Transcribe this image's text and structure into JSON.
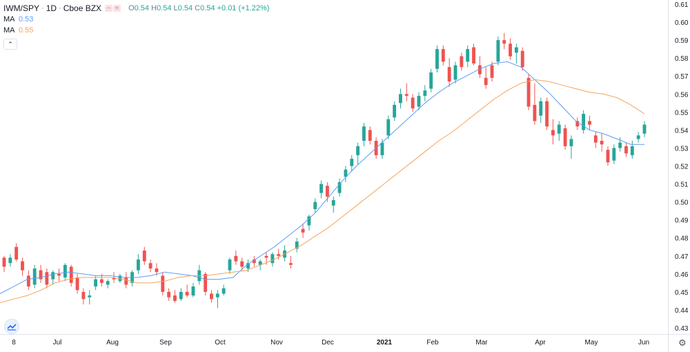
{
  "legend": {
    "symbol": "IWM/SPY",
    "interval": "1D",
    "exchange": "Cboe BZX",
    "badges": [
      "−",
      "≈"
    ],
    "ohlc": {
      "o_key": "O",
      "o": "0.54",
      "h_key": "H",
      "h": "0.54",
      "l_key": "L",
      "l": "0.54",
      "c_key": "C",
      "c": "0.54",
      "change": "+0.01 (+1.22%)"
    },
    "ma_rows": [
      {
        "label": "MA",
        "value": "0.53",
        "color": "#5b9cf6"
      },
      {
        "label": "MA",
        "value": "0.55",
        "color": "#f7a35c"
      }
    ],
    "collapse_icon": "chevron-up-icon"
  },
  "footer": {
    "logo_icon": "tradingview-logo-icon",
    "settings_icon": "gear-icon"
  },
  "colors": {
    "up": "#26a69a",
    "down": "#ef5350",
    "ma_short": "#5b9cf6",
    "ma_long": "#f7a35c",
    "axis_text": "#131722",
    "border": "#e0e3eb"
  },
  "chart_data": {
    "type": "candlestick",
    "title": "IWM/SPY",
    "xlabel": "",
    "ylabel": "",
    "ylim": [
      0.425,
      0.615
    ],
    "y_ticks": [
      "0.43",
      "0.44",
      "0.45",
      "0.46",
      "0.47",
      "0.48",
      "0.49",
      "0.50",
      "0.51",
      "0.52",
      "0.53",
      "0.54",
      "0.55",
      "0.56",
      "0.57",
      "0.58",
      "0.59",
      "0.60",
      "0.61"
    ],
    "x_ticks": [
      "8",
      "Jul",
      "Aug",
      "Sep",
      "Oct",
      "Nov",
      "Dec",
      "2021",
      "Feb",
      "Mar",
      "Apr",
      "May",
      "Jun"
    ],
    "series": [
      {
        "name": "MA",
        "value": "0.53",
        "values": [
          0.449,
          0.453,
          0.457,
          0.458,
          0.46,
          0.461,
          0.46,
          0.459,
          0.459,
          0.458,
          0.458,
          0.459,
          0.461,
          0.46,
          0.459,
          0.457,
          0.457,
          0.458,
          0.465,
          0.47,
          0.475,
          0.481,
          0.487,
          0.494,
          0.503,
          0.512,
          0.52,
          0.527,
          0.534,
          0.541,
          0.548,
          0.555,
          0.561,
          0.566,
          0.57,
          0.574,
          0.577,
          0.578,
          0.575,
          0.568,
          0.561,
          0.553,
          0.545,
          0.54,
          0.538,
          0.535,
          0.532,
          0.532
        ]
      },
      {
        "name": "MA",
        "value": "0.55",
        "values": [
          0.444,
          0.446,
          0.448,
          0.451,
          0.455,
          0.457,
          0.458,
          0.458,
          0.458,
          0.457,
          0.455,
          0.455,
          0.456,
          0.458,
          0.459,
          0.459,
          0.46,
          0.461,
          0.462,
          0.465,
          0.468,
          0.472,
          0.476,
          0.481,
          0.486,
          0.492,
          0.498,
          0.504,
          0.51,
          0.516,
          0.522,
          0.528,
          0.534,
          0.539,
          0.545,
          0.551,
          0.557,
          0.562,
          0.566,
          0.568,
          0.567,
          0.565,
          0.563,
          0.561,
          0.56,
          0.558,
          0.554,
          0.549
        ]
      }
    ],
    "candles": [
      [
        0.469,
        0.47,
        0.461,
        0.464
      ],
      [
        0.466,
        0.471,
        0.464,
        0.469
      ],
      [
        0.475,
        0.477,
        0.467,
        0.468
      ],
      [
        0.467,
        0.469,
        0.459,
        0.462
      ],
      [
        0.459,
        0.462,
        0.451,
        0.453
      ],
      [
        0.454,
        0.465,
        0.452,
        0.463
      ],
      [
        0.462,
        0.465,
        0.455,
        0.457
      ],
      [
        0.461,
        0.463,
        0.452,
        0.454
      ],
      [
        0.457,
        0.462,
        0.454,
        0.461
      ],
      [
        0.46,
        0.463,
        0.456,
        0.459
      ],
      [
        0.458,
        0.466,
        0.456,
        0.465
      ],
      [
        0.464,
        0.465,
        0.453,
        0.455
      ],
      [
        0.458,
        0.46,
        0.449,
        0.451
      ],
      [
        0.45,
        0.452,
        0.443,
        0.446
      ],
      [
        0.447,
        0.451,
        0.443,
        0.448
      ],
      [
        0.453,
        0.459,
        0.451,
        0.457
      ],
      [
        0.457,
        0.46,
        0.453,
        0.455
      ],
      [
        0.454,
        0.457,
        0.452,
        0.456
      ],
      [
        0.458,
        0.461,
        0.455,
        0.457
      ],
      [
        0.456,
        0.46,
        0.455,
        0.459
      ],
      [
        0.458,
        0.461,
        0.452,
        0.454
      ],
      [
        0.455,
        0.462,
        0.453,
        0.461
      ],
      [
        0.462,
        0.471,
        0.46,
        0.468
      ],
      [
        0.473,
        0.475,
        0.465,
        0.467
      ],
      [
        0.466,
        0.468,
        0.461,
        0.463
      ],
      [
        0.463,
        0.466,
        0.459,
        0.461
      ],
      [
        0.459,
        0.461,
        0.448,
        0.45
      ],
      [
        0.45,
        0.452,
        0.445,
        0.447
      ],
      [
        0.448,
        0.451,
        0.444,
        0.445
      ],
      [
        0.446,
        0.452,
        0.445,
        0.45
      ],
      [
        0.45,
        0.454,
        0.447,
        0.448
      ],
      [
        0.448,
        0.455,
        0.447,
        0.453
      ],
      [
        0.456,
        0.465,
        0.454,
        0.462
      ],
      [
        0.46,
        0.461,
        0.448,
        0.45
      ],
      [
        0.449,
        0.451,
        0.444,
        0.446
      ],
      [
        0.447,
        0.451,
        0.441,
        0.449
      ],
      [
        0.449,
        0.454,
        0.448,
        0.452
      ],
      [
        0.462,
        0.469,
        0.46,
        0.468
      ],
      [
        0.47,
        0.473,
        0.465,
        0.467
      ],
      [
        0.467,
        0.469,
        0.462,
        0.464
      ],
      [
        0.463,
        0.468,
        0.461,
        0.466
      ],
      [
        0.468,
        0.47,
        0.464,
        0.466
      ],
      [
        0.465,
        0.468,
        0.462,
        0.467
      ],
      [
        0.47,
        0.472,
        0.465,
        0.469
      ],
      [
        0.466,
        0.472,
        0.464,
        0.471
      ],
      [
        0.471,
        0.474,
        0.468,
        0.47
      ],
      [
        0.469,
        0.476,
        0.467,
        0.473
      ],
      [
        0.466,
        0.47,
        0.463,
        0.465
      ],
      [
        0.474,
        0.48,
        0.472,
        0.478
      ],
      [
        0.485,
        0.488,
        0.48,
        0.483
      ],
      [
        0.487,
        0.493,
        0.484,
        0.492
      ],
      [
        0.496,
        0.502,
        0.494,
        0.5
      ],
      [
        0.505,
        0.512,
        0.502,
        0.51
      ],
      [
        0.509,
        0.511,
        0.5,
        0.503
      ],
      [
        0.498,
        0.503,
        0.494,
        0.501
      ],
      [
        0.505,
        0.513,
        0.503,
        0.511
      ],
      [
        0.514,
        0.52,
        0.511,
        0.518
      ],
      [
        0.52,
        0.526,
        0.517,
        0.524
      ],
      [
        0.526,
        0.533,
        0.521,
        0.531
      ],
      [
        0.534,
        0.544,
        0.531,
        0.542
      ],
      [
        0.54,
        0.542,
        0.532,
        0.534
      ],
      [
        0.534,
        0.536,
        0.524,
        0.526
      ],
      [
        0.526,
        0.535,
        0.524,
        0.533
      ],
      [
        0.537,
        0.548,
        0.535,
        0.546
      ],
      [
        0.547,
        0.556,
        0.545,
        0.554
      ],
      [
        0.555,
        0.563,
        0.552,
        0.56
      ],
      [
        0.56,
        0.566,
        0.556,
        0.559
      ],
      [
        0.558,
        0.56,
        0.55,
        0.552
      ],
      [
        0.553,
        0.561,
        0.551,
        0.559
      ],
      [
        0.559,
        0.565,
        0.556,
        0.562
      ],
      [
        0.563,
        0.574,
        0.561,
        0.572
      ],
      [
        0.574,
        0.587,
        0.572,
        0.585
      ],
      [
        0.585,
        0.587,
        0.576,
        0.578
      ],
      [
        0.575,
        0.58,
        0.564,
        0.567
      ],
      [
        0.568,
        0.578,
        0.566,
        0.576
      ],
      [
        0.581,
        0.583,
        0.573,
        0.575
      ],
      [
        0.578,
        0.587,
        0.575,
        0.585
      ],
      [
        0.586,
        0.588,
        0.576,
        0.577
      ],
      [
        0.576,
        0.581,
        0.569,
        0.571
      ],
      [
        0.569,
        0.575,
        0.563,
        0.565
      ],
      [
        0.576,
        0.578,
        0.567,
        0.569
      ],
      [
        0.578,
        0.592,
        0.576,
        0.59
      ],
      [
        0.59,
        0.594,
        0.585,
        0.588
      ],
      [
        0.588,
        0.591,
        0.579,
        0.581
      ],
      [
        0.583,
        0.588,
        0.577,
        0.586
      ],
      [
        0.584,
        0.586,
        0.573,
        0.575
      ],
      [
        0.569,
        0.571,
        0.551,
        0.553
      ],
      [
        0.554,
        0.566,
        0.543,
        0.545
      ],
      [
        0.548,
        0.558,
        0.544,
        0.556
      ],
      [
        0.556,
        0.558,
        0.54,
        0.542
      ],
      [
        0.54,
        0.546,
        0.532,
        0.537
      ],
      [
        0.538,
        0.545,
        0.534,
        0.543
      ],
      [
        0.541,
        0.543,
        0.529,
        0.531
      ],
      [
        0.531,
        0.537,
        0.524,
        0.535
      ],
      [
        0.545,
        0.547,
        0.54,
        0.542
      ],
      [
        0.54,
        0.551,
        0.538,
        0.549
      ],
      [
        0.545,
        0.548,
        0.54,
        0.543
      ],
      [
        0.537,
        0.539,
        0.53,
        0.533
      ],
      [
        0.534,
        0.538,
        0.528,
        0.532
      ],
      [
        0.529,
        0.531,
        0.52,
        0.522
      ],
      [
        0.523,
        0.532,
        0.521,
        0.53
      ],
      [
        0.53,
        0.536,
        0.528,
        0.533
      ],
      [
        0.531,
        0.533,
        0.525,
        0.527
      ],
      [
        0.526,
        0.534,
        0.524,
        0.531
      ],
      [
        0.535,
        0.539,
        0.533,
        0.537
      ],
      [
        0.538,
        0.545,
        0.536,
        0.543
      ]
    ]
  }
}
